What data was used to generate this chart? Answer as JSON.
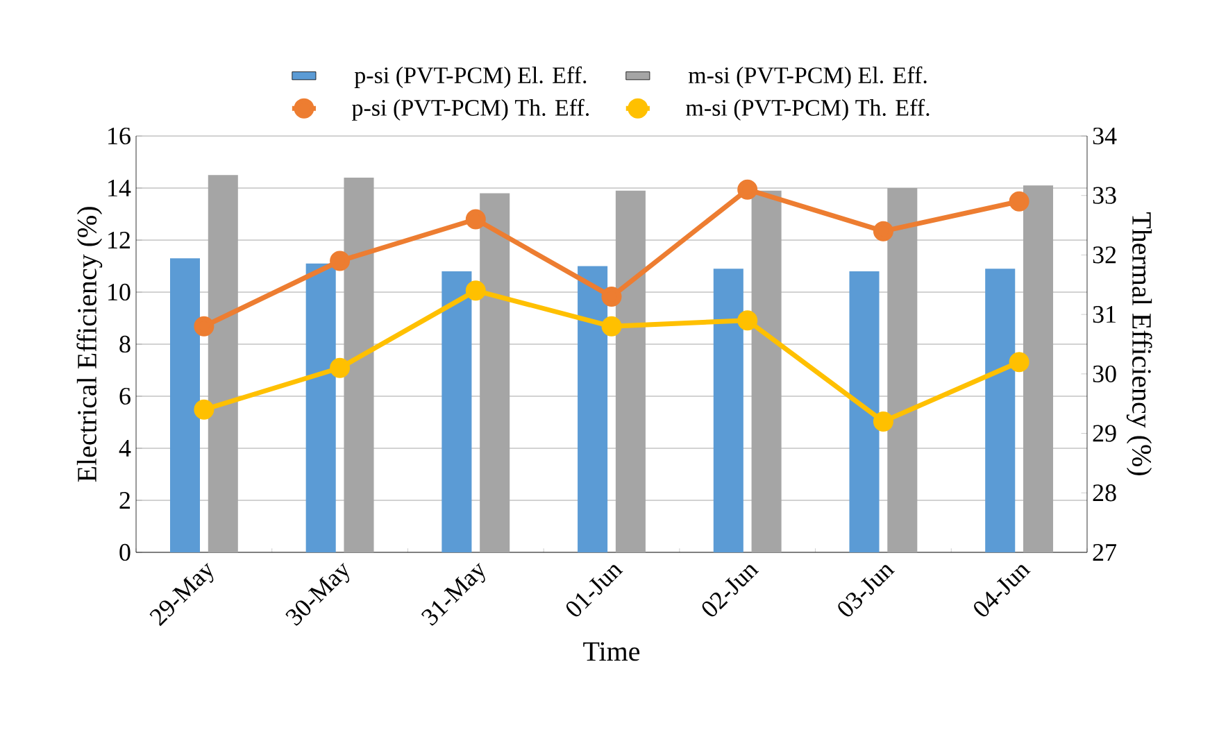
{
  "chart_data": {
    "type": "bar",
    "xlabel": "Time",
    "ylabel": "Electrical Efficiency (%)",
    "y2label": "Thermal Efficiency (%)",
    "categories": [
      "29-May",
      "30-May",
      "31-May",
      "01-Jun",
      "02-Jun",
      "03-Jun",
      "04-Jun"
    ],
    "series": [
      {
        "name": "p-si (PVT-PCM) El. Eff.",
        "color": "#5b9bd5",
        "values": [
          11.3,
          11.1,
          10.8,
          11.0,
          10.9,
          10.8,
          10.9
        ]
      },
      {
        "name": "m-si (PVT-PCM) El. Eff.",
        "color": "#a5a5a5",
        "values": [
          14.5,
          14.4,
          13.8,
          13.9,
          13.9,
          14.0,
          14.1
        ]
      },
      {
        "name": "p-si (PVT-PCM) Th. Eff.",
        "type": "line",
        "axis": "y2",
        "marker": "circle",
        "color": "#ed7d31",
        "values": [
          30.8,
          31.9,
          32.6,
          31.3,
          33.1,
          32.4,
          32.9
        ]
      },
      {
        "name": "m-si (PVT-PCM) Th. Eff.",
        "type": "line",
        "axis": "y2",
        "marker": "circle",
        "color": "#ffc000",
        "values": [
          29.4,
          30.1,
          31.4,
          30.8,
          30.9,
          29.2,
          30.2
        ]
      }
    ],
    "ylim": [
      0,
      16
    ],
    "yticks": [
      0,
      2,
      4,
      6,
      8,
      10,
      12,
      14,
      16
    ],
    "y2lim": [
      27,
      34
    ],
    "y2ticks": [
      27,
      28,
      29,
      30,
      31,
      32,
      33,
      34
    ],
    "grid": "y",
    "legend": "top"
  }
}
